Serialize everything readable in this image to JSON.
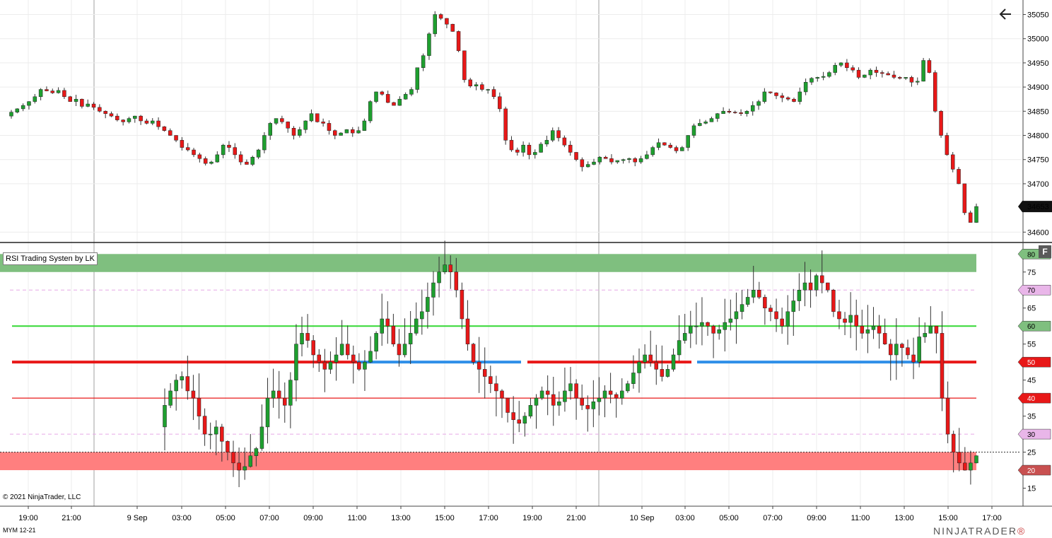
{
  "window": {
    "instrument": "MYM 12-21",
    "copyright": "© 2021 NinjaTrader, LLC",
    "brand": "NINJATRADER",
    "brand_mark": "®",
    "back_icon": "arrow-left-icon",
    "f_button": "F"
  },
  "colors": {
    "up": "#1e9f2f",
    "down": "#e81818",
    "overbought_zone": "#7fbf7f",
    "oversold_zone": "#ff7f7f",
    "line60": "#35d835",
    "line50_bear": "#e81818",
    "line50_bull": "#2f8fe8",
    "line40": "#e81818",
    "dashed": "#e6a9e6"
  },
  "price_panel": {
    "y_labels": [
      "35050",
      "35000",
      "34950",
      "34900",
      "34850",
      "34800",
      "34750",
      "34700",
      "34600"
    ],
    "current_price": "34653"
  },
  "indicator_panel": {
    "title": "RSI Trading Systen by LK",
    "y_labels": [
      "75",
      "65",
      "55",
      "45",
      "35",
      "25",
      "15"
    ],
    "level_tags": [
      {
        "text": "80",
        "kind": "green"
      },
      {
        "text": "70",
        "kind": "violet"
      },
      {
        "text": "60",
        "kind": "green"
      },
      {
        "text": "50",
        "kind": "red"
      },
      {
        "text": "40",
        "kind": "red"
      },
      {
        "text": "30",
        "kind": "violet"
      },
      {
        "text": "20",
        "kind": "darkred"
      }
    ]
  },
  "x_axis": {
    "labels": [
      "19:00",
      "21:00",
      "9 Sep",
      "03:00",
      "05:00",
      "07:00",
      "09:00",
      "11:00",
      "13:00",
      "15:00",
      "17:00",
      "19:00",
      "21:00",
      "10 Sep",
      "03:00",
      "05:00",
      "07:00",
      "09:00",
      "11:00",
      "13:00",
      "15:00",
      "17:00"
    ]
  },
  "chart_data": [
    {
      "type": "candlestick",
      "title": "",
      "ylim": [
        34580,
        35080
      ],
      "yticks": [
        34600,
        34700,
        34750,
        34800,
        34850,
        34900,
        34950,
        35000,
        35050
      ],
      "last": 34653,
      "closes": [
        34848,
        34855,
        34862,
        34870,
        34880,
        34895,
        34892,
        34888,
        34893,
        34880,
        34870,
        34875,
        34860,
        34865,
        34858,
        34850,
        34845,
        34840,
        34832,
        34828,
        34835,
        34840,
        34830,
        34825,
        34830,
        34818,
        34810,
        34800,
        34790,
        34775,
        34770,
        34760,
        34752,
        34742,
        34745,
        34760,
        34780,
        34775,
        34760,
        34745,
        34740,
        34755,
        34770,
        34800,
        34825,
        34835,
        34828,
        34815,
        34800,
        34812,
        34830,
        34845,
        34828,
        34825,
        34810,
        34800,
        34805,
        34812,
        34805,
        34810,
        34830,
        34870,
        34890,
        34885,
        34868,
        34862,
        34875,
        34885,
        34895,
        34940,
        34965,
        35010,
        35050,
        35042,
        35030,
        35015,
        34975,
        34915,
        34902,
        34905,
        34895,
        34895,
        34880,
        34855,
        34790,
        34770,
        34765,
        34780,
        34760,
        34765,
        34782,
        34790,
        34810,
        34795,
        34780,
        34765,
        34750,
        34735,
        34740,
        34745,
        34755,
        34752,
        34745,
        34748,
        34750,
        34752,
        34745,
        34752,
        34760,
        34775,
        34785,
        34780,
        34775,
        34768,
        34775,
        34800,
        34820,
        34825,
        34828,
        34835,
        34845,
        34850,
        34848,
        34847,
        34845,
        34850,
        34862,
        34870,
        34890,
        34888,
        34882,
        34878,
        34875,
        34870,
        34890,
        34910,
        34918,
        34920,
        34922,
        34930,
        34945,
        34950,
        34940,
        34935,
        34920,
        34925,
        34935,
        34930,
        34928,
        34925,
        34920,
        34918,
        34920,
        34910,
        34912,
        34955,
        34930,
        34850,
        34800,
        34760,
        34730,
        34700,
        34640,
        34620,
        34653
      ]
    },
    {
      "type": "candlestick",
      "title": "RSI Trading Systen by LK",
      "ylim": [
        10,
        83
      ],
      "yticks": [
        15,
        25,
        35,
        45,
        55,
        65,
        75
      ],
      "levels": [
        80,
        75,
        70,
        60,
        50,
        40,
        30,
        25,
        20
      ],
      "closes": [
        38,
        42,
        45,
        46,
        42,
        40,
        35,
        30,
        30,
        32,
        28,
        25,
        22,
        20,
        21,
        24,
        26,
        32,
        40,
        42,
        40,
        38,
        45,
        55,
        58,
        56,
        52,
        50,
        48,
        50,
        52,
        55,
        52,
        50,
        48,
        50,
        53,
        58,
        62,
        60,
        55,
        52,
        55,
        58,
        62,
        64,
        68,
        72,
        75,
        77,
        75,
        70,
        62,
        55,
        50,
        48,
        46,
        44,
        42,
        40,
        36,
        34,
        33,
        35,
        38,
        40,
        42,
        41,
        38,
        39,
        42,
        44,
        40,
        38,
        37,
        39,
        40,
        42,
        41,
        40,
        42,
        44,
        47,
        50,
        52,
        50,
        48,
        46,
        48,
        52,
        56,
        58,
        60,
        60,
        61,
        60,
        58,
        59,
        61,
        62,
        64,
        66,
        68,
        70,
        68,
        65,
        64,
        62,
        60,
        64,
        67,
        70,
        72,
        70,
        74,
        72,
        70,
        64,
        62,
        61,
        63,
        60,
        58,
        59,
        60,
        58,
        55,
        52,
        55,
        54,
        52,
        50,
        57,
        58,
        60,
        58,
        40,
        30,
        25,
        22,
        20,
        22,
        24
      ]
    }
  ]
}
